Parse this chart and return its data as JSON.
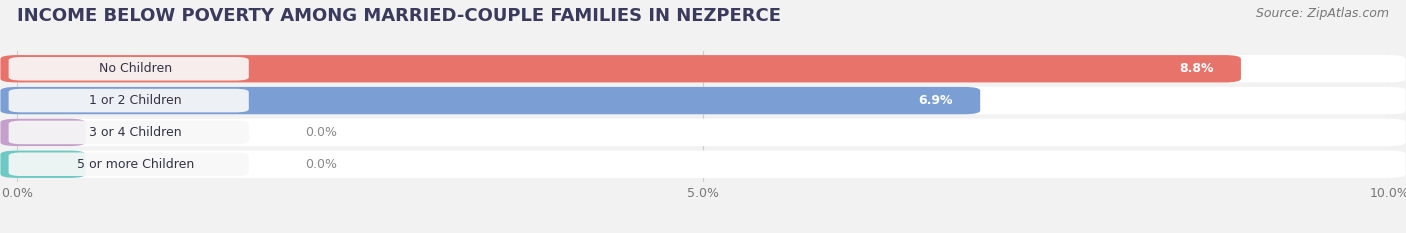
{
  "title": "INCOME BELOW POVERTY AMONG MARRIED-COUPLE FAMILIES IN NEZPERCE",
  "source": "Source: ZipAtlas.com",
  "categories": [
    "No Children",
    "1 or 2 Children",
    "3 or 4 Children",
    "5 or more Children"
  ],
  "values": [
    8.8,
    6.9,
    0.0,
    0.0
  ],
  "bar_colors": [
    "#E8736B",
    "#7B9FD4",
    "#C4A0CC",
    "#6EC8C4"
  ],
  "xlim": [
    0,
    10.0
  ],
  "xtick_labels": [
    "0.0%",
    "5.0%",
    "10.0%"
  ],
  "background_color": "#f2f2f2",
  "bar_background_color": "#ffffff",
  "title_fontsize": 13,
  "source_fontsize": 9,
  "label_fontsize": 9,
  "value_fontsize": 9
}
